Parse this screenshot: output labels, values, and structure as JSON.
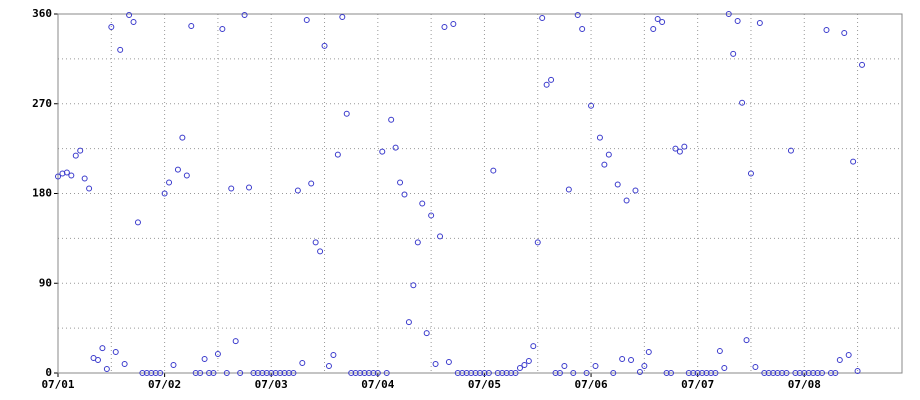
{
  "chart_data": {
    "type": "scatter",
    "x": [
      0,
      1,
      2,
      3,
      4,
      5,
      6,
      7,
      8,
      9,
      10,
      11,
      12,
      13,
      14,
      15,
      16,
      17,
      18,
      19,
      20,
      21,
      22,
      23,
      24,
      25,
      26,
      27,
      28,
      29,
      30,
      31,
      32,
      33,
      34,
      35,
      36,
      37,
      38,
      39,
      40,
      41,
      42,
      43,
      44,
      45,
      46,
      47,
      48,
      49,
      50,
      51,
      52,
      53,
      54,
      55,
      56,
      57,
      58,
      59,
      60,
      61,
      62,
      63,
      64,
      65,
      66,
      67,
      68,
      69,
      70,
      71,
      72,
      73,
      74,
      75,
      76,
      77,
      78,
      79,
      80,
      81,
      82,
      83,
      84,
      85,
      86,
      87,
      88,
      89,
      90,
      91,
      92,
      93,
      94,
      95,
      96,
      97,
      98,
      99,
      100,
      101,
      102,
      103,
      104,
      105,
      106,
      107,
      108,
      109,
      110,
      111,
      112,
      113,
      114,
      115,
      116,
      117,
      118,
      119,
      120,
      121,
      122,
      123,
      124,
      125,
      126,
      127,
      128,
      129,
      130,
      131,
      132,
      133,
      134,
      135,
      136,
      137,
      138,
      139,
      140,
      141,
      142,
      143,
      144,
      145,
      146,
      147,
      148,
      149,
      150,
      151,
      152,
      153,
      154,
      155,
      156,
      157,
      158,
      159,
      160,
      161,
      162,
      163,
      164,
      165,
      166,
      167,
      168,
      169,
      170,
      171,
      172,
      173,
      174,
      175,
      176,
      177,
      178,
      179,
      180,
      181
    ],
    "values": [
      197,
      200,
      201,
      198,
      218,
      223,
      195,
      185,
      15,
      13,
      25,
      4,
      347,
      21,
      324,
      9,
      359,
      352,
      151,
      0,
      0,
      0,
      0,
      0,
      180,
      191,
      8,
      204,
      236,
      198,
      348,
      0,
      0,
      14,
      0,
      0,
      19,
      345,
      0,
      185,
      32,
      0,
      359,
      186,
      0,
      0,
      0,
      0,
      0,
      0,
      0,
      0,
      0,
      0,
      183,
      10,
      354,
      190,
      131,
      122,
      328,
      7,
      18,
      219,
      357,
      260,
      0,
      0,
      0,
      0,
      0,
      0,
      0,
      222,
      0,
      254,
      226,
      191,
      179,
      51,
      88,
      131,
      170,
      40,
      158,
      9,
      137,
      347,
      11,
      350,
      0,
      0,
      0,
      0,
      0,
      0,
      0,
      0,
      203,
      0,
      0,
      0,
      0,
      0,
      5,
      8,
      12,
      27,
      131,
      356,
      289,
      294,
      0,
      0,
      7,
      184,
      0,
      359,
      345,
      0,
      268,
      7,
      236,
      209,
      219,
      0,
      189,
      14,
      173,
      13,
      183,
      1,
      7,
      21,
      345,
      355,
      352,
      0,
      0,
      225,
      222,
      227,
      0,
      0,
      0,
      0,
      0,
      0,
      0,
      22,
      5,
      360,
      320,
      353,
      271,
      33,
      200,
      6,
      351,
      0,
      0,
      0,
      0,
      0,
      0,
      223,
      0,
      0,
      0,
      0,
      0,
      0,
      0,
      344,
      0,
      0,
      13,
      341,
      18,
      212,
      2,
      309
    ],
    "color": "#3a3acc",
    "xlim": [
      0,
      190
    ],
    "ylim": [
      0,
      360
    ],
    "xticks": [
      {
        "value": 0,
        "label": "07/01"
      },
      {
        "value": 24,
        "label": "07/02"
      },
      {
        "value": 48,
        "label": "07/03"
      },
      {
        "value": 72,
        "label": "07/04"
      },
      {
        "value": 96,
        "label": "07/05"
      },
      {
        "value": 120,
        "label": "07/06"
      },
      {
        "value": 144,
        "label": "07/07"
      },
      {
        "value": 168,
        "label": "07/08"
      }
    ],
    "xminor": [
      12,
      36,
      60,
      84,
      108,
      132,
      156,
      180
    ],
    "yticks": [
      0,
      90,
      180,
      270,
      360
    ],
    "yminor": [
      45,
      135,
      225,
      315
    ],
    "grid": true
  }
}
